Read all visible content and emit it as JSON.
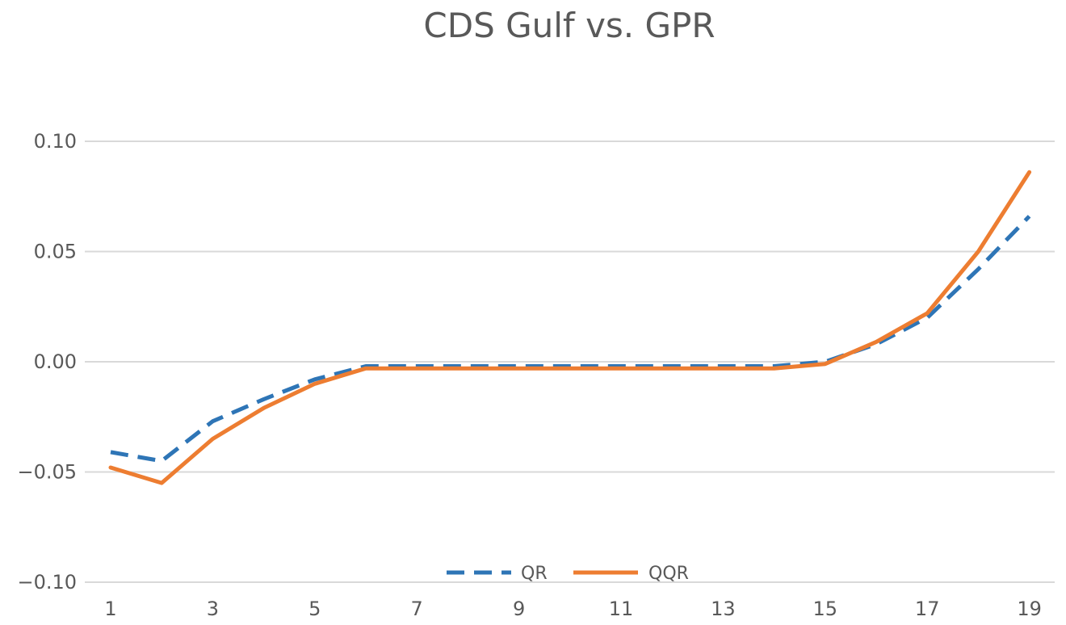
{
  "chart_data": {
    "type": "line",
    "title": "CDS Gulf vs. GPR",
    "xlabel": "",
    "ylabel": "",
    "x": [
      1,
      2,
      3,
      4,
      5,
      6,
      7,
      8,
      9,
      10,
      11,
      12,
      13,
      14,
      15,
      16,
      17,
      18,
      19
    ],
    "x_tick_labels": [
      "1",
      "3",
      "5",
      "7",
      "9",
      "11",
      "13",
      "15",
      "17",
      "19"
    ],
    "y_tick_labels": [
      "0.10",
      "0.05",
      "0.00",
      "−0.05",
      "−0.10"
    ],
    "ylim": [
      -0.1,
      0.1
    ],
    "grid": true,
    "legend_position": "bottom",
    "series": [
      {
        "name": "QR",
        "style": "dashed",
        "color": "#2e75b6",
        "values": [
          -0.041,
          -0.045,
          -0.027,
          -0.017,
          -0.008,
          -0.002,
          -0.002,
          -0.002,
          -0.002,
          -0.002,
          -0.002,
          -0.002,
          -0.002,
          -0.002,
          0.0,
          0.008,
          0.02,
          0.042,
          0.066
        ]
      },
      {
        "name": "QQR",
        "style": "solid",
        "color": "#ed7d31",
        "values": [
          -0.048,
          -0.055,
          -0.035,
          -0.021,
          -0.01,
          -0.003,
          -0.003,
          -0.003,
          -0.003,
          -0.003,
          -0.003,
          -0.003,
          -0.003,
          -0.003,
          -0.001,
          0.009,
          0.022,
          0.05,
          0.086
        ]
      }
    ]
  }
}
